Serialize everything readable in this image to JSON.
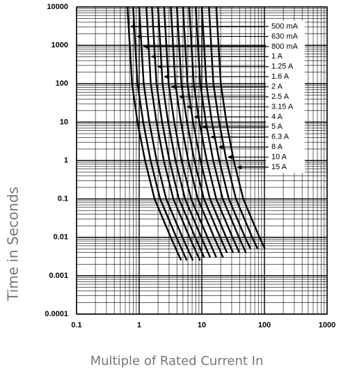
{
  "chart_data": {
    "type": "line",
    "ylabel": "Time in Seconds",
    "xlabel": "Multiple of Rated Current In",
    "log_x": true,
    "log_y": true,
    "grid": true,
    "line_color": "#000000",
    "xlim": [
      0.1,
      1000
    ],
    "xticks": [
      0.1,
      1,
      10,
      100,
      1000
    ],
    "ylim": [
      0.0001,
      10000
    ],
    "yticks": [
      0.0001,
      0.001,
      0.01,
      0.1,
      1,
      10,
      100,
      1000,
      10000
    ],
    "series": [
      {
        "name": "500 mA",
        "x": [
          0.65,
          0.77,
          0.94,
          1.24,
          1.76,
          3.19,
          4.68
        ],
        "values": [
          10000,
          100,
          10,
          1,
          0.1,
          0.01,
          0.0025
        ]
      },
      {
        "name": "630 mA",
        "x": [
          0.8,
          0.94,
          1.16,
          1.52,
          2.16,
          3.92,
          5.76
        ],
        "values": [
          10000,
          100,
          10,
          1,
          0.1,
          0.01,
          0.0025
        ]
      },
      {
        "name": "800 mA",
        "x": [
          1,
          1.18,
          1.45,
          1.9,
          2.7,
          4.9,
          7.2
        ],
        "values": [
          10000,
          100,
          10,
          1,
          0.1,
          0.01,
          0.0025
        ]
      },
      {
        "name": "1 A",
        "x": [
          1.3,
          1.53,
          1.89,
          2.47,
          3.51,
          6.37,
          9.36
        ],
        "values": [
          10000,
          100,
          10,
          1,
          0.1,
          0.01,
          0.0025
        ]
      },
      {
        "name": "1.25 A",
        "x": [
          1.6,
          1.89,
          2.32,
          3.04,
          4.32,
          7.84,
          10.9
        ],
        "values": [
          10000,
          100,
          10,
          1,
          0.1,
          0.01,
          0.003
        ]
      },
      {
        "name": "1.6 A",
        "x": [
          2,
          2.36,
          2.9,
          3.8,
          5.4,
          9.8,
          13.6
        ],
        "values": [
          10000,
          100,
          10,
          1,
          0.1,
          0.01,
          0.003
        ]
      },
      {
        "name": "2 A",
        "x": [
          2.5,
          2.95,
          3.63,
          4.75,
          6.75,
          12.3,
          17
        ],
        "values": [
          10000,
          100,
          10,
          1,
          0.1,
          0.01,
          0.003
        ]
      },
      {
        "name": "2.5 A",
        "x": [
          3.2,
          3.78,
          4.64,
          6.08,
          8.64,
          15.7,
          21.8
        ],
        "values": [
          10000,
          100,
          10,
          1,
          0.1,
          0.01,
          0.003
        ]
      },
      {
        "name": "3.15 A",
        "x": [
          4,
          4.72,
          5.8,
          7.6,
          10.8,
          19.6,
          25.2
        ],
        "values": [
          10000,
          100,
          10,
          1,
          0.1,
          0.01,
          0.004
        ]
      },
      {
        "name": "4 A",
        "x": [
          5,
          5.9,
          7.25,
          9.5,
          13.5,
          24.5,
          31.5
        ],
        "values": [
          10000,
          100,
          10,
          1,
          0.1,
          0.01,
          0.004
        ]
      },
      {
        "name": "5 A",
        "x": [
          6.3,
          7.43,
          9.14,
          12,
          17,
          30.9,
          39.7
        ],
        "values": [
          10000,
          100,
          10,
          1,
          0.1,
          0.01,
          0.004
        ]
      },
      {
        "name": "6.3 A",
        "x": [
          8,
          9.44,
          11.6,
          15.2,
          21.6,
          39.2,
          50.4
        ],
        "values": [
          10000,
          100,
          10,
          1,
          0.1,
          0.01,
          0.004
        ]
      },
      {
        "name": "8 A",
        "x": [
          10,
          11.8,
          14.5,
          19,
          27,
          49,
          60
        ],
        "values": [
          10000,
          100,
          10,
          1,
          0.1,
          0.01,
          0.005
        ]
      },
      {
        "name": "10 A",
        "x": [
          13,
          15.3,
          18.9,
          24.7,
          35.1,
          63.7,
          78
        ],
        "values": [
          10000,
          100,
          10,
          1,
          0.1,
          0.01,
          0.005
        ]
      },
      {
        "name": "15 A",
        "x": [
          17,
          20.1,
          24.7,
          32.3,
          45.9,
          83.3,
          102
        ],
        "values": [
          10000,
          100,
          10,
          1,
          0.1,
          0.01,
          0.005
        ]
      }
    ]
  }
}
